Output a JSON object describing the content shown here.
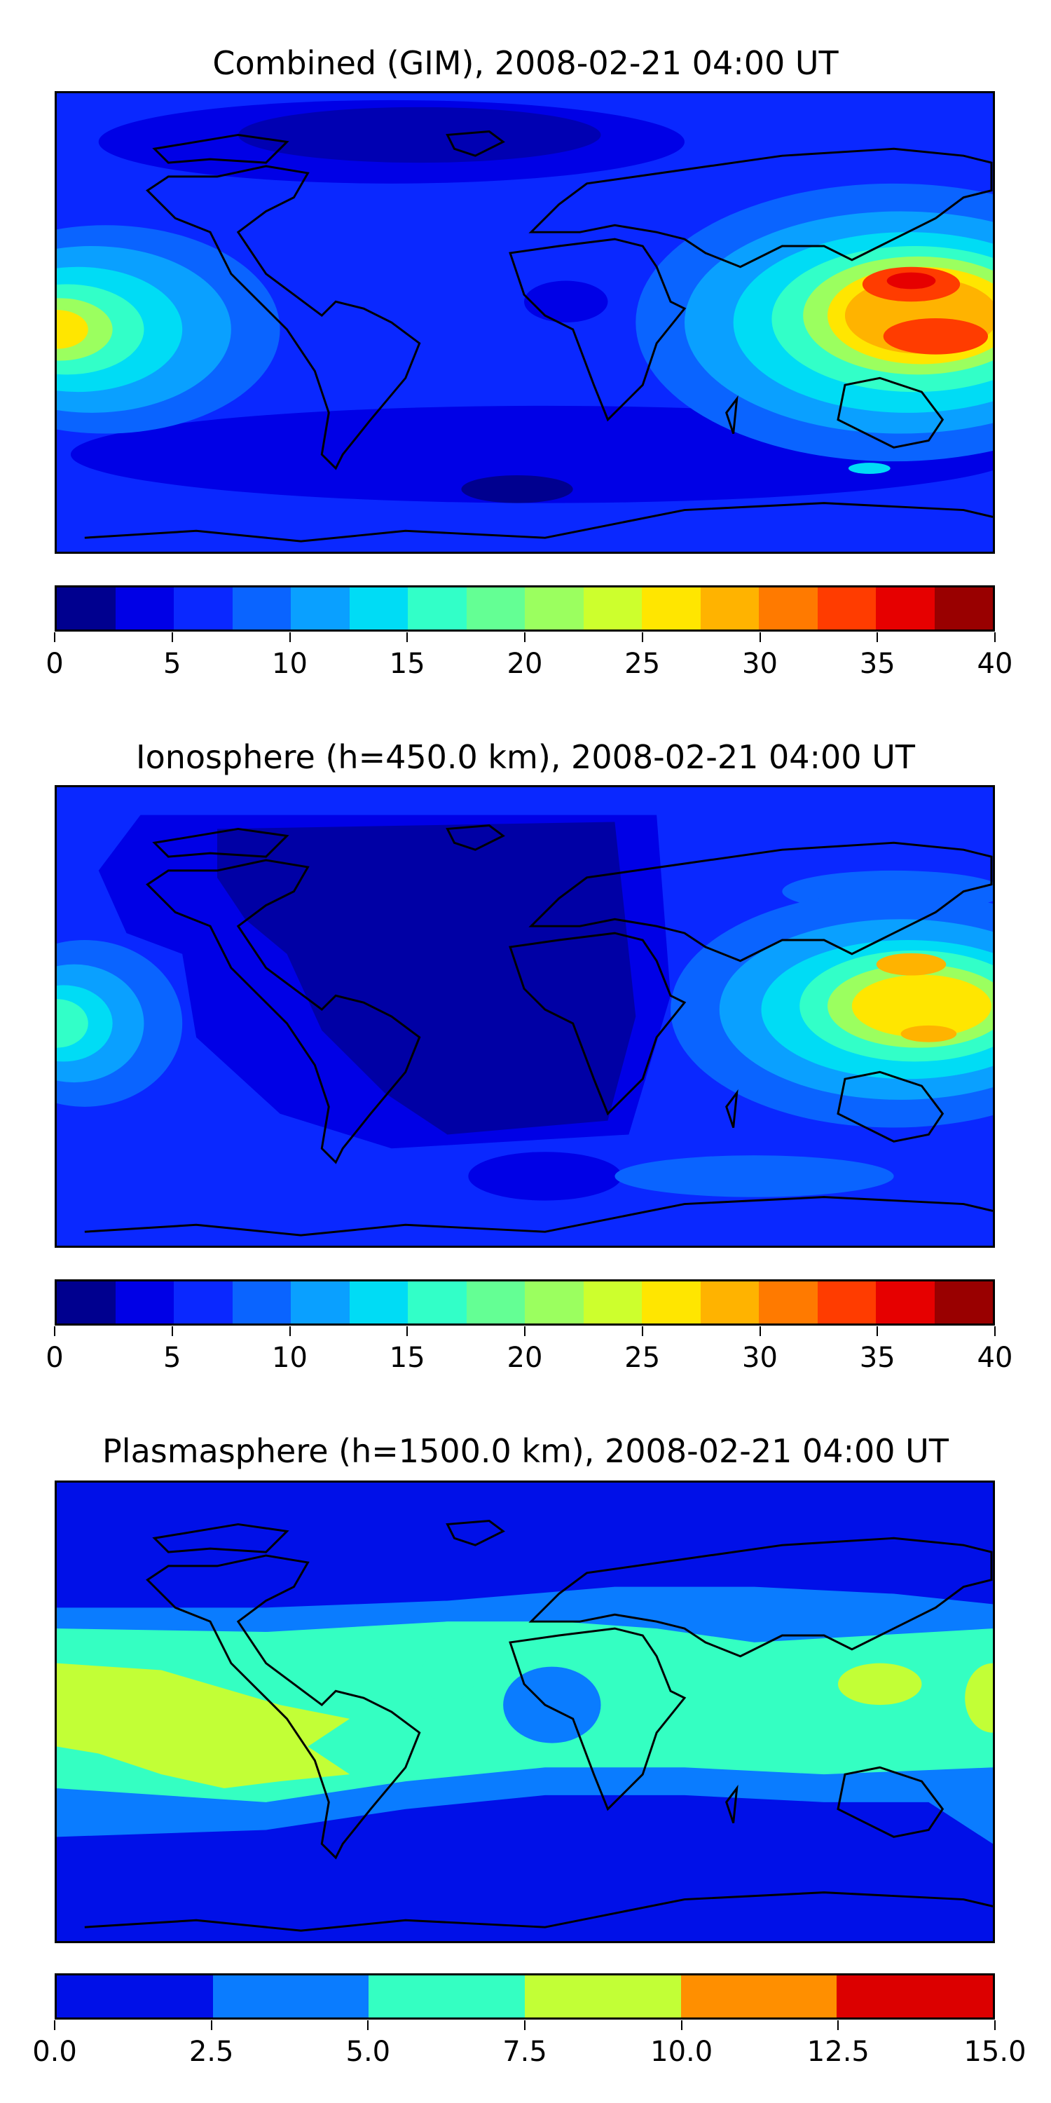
{
  "panels": [
    {
      "id": "combined",
      "title": "Combined (GIM), 2008-02-21 04:00 UT",
      "colorbar": {
        "colors": [
          "#00008f",
          "#0000e6",
          "#0a28ff",
          "#0a64ff",
          "#0aa0ff",
          "#00dcf5",
          "#32ffc8",
          "#64ff94",
          "#9bff5f",
          "#cdff2d",
          "#ffe600",
          "#ffb300",
          "#ff7a00",
          "#ff3c00",
          "#e60000",
          "#990000"
        ],
        "ticks": [
          "0",
          "5",
          "10",
          "15",
          "20",
          "25",
          "30",
          "35",
          "40"
        ]
      }
    },
    {
      "id": "ionosphere",
      "title": "Ionosphere  (h=450.0 km), 2008-02-21 04:00 UT",
      "colorbar": {
        "colors": [
          "#00008f",
          "#0000e6",
          "#0a28ff",
          "#0a64ff",
          "#0aa0ff",
          "#00dcf5",
          "#32ffc8",
          "#64ff94",
          "#9bff5f",
          "#cdff2d",
          "#ffe600",
          "#ffb300",
          "#ff7a00",
          "#ff3c00",
          "#e60000",
          "#990000"
        ],
        "ticks": [
          "0",
          "5",
          "10",
          "15",
          "20",
          "25",
          "30",
          "35",
          "40"
        ]
      }
    },
    {
      "id": "plasmasphere",
      "title": "Plasmasphere (h=1500.0 km), 2008-02-21 04:00 UT",
      "colorbar": {
        "colors": [
          "#0010e8",
          "#0a7cff",
          "#34ffc2",
          "#c2ff36",
          "#ff8f00",
          "#dc0000"
        ],
        "ticks": [
          "0.0",
          "2.5",
          "5.0",
          "7.5",
          "10.0",
          "12.5",
          "15.0"
        ]
      }
    }
  ]
}
